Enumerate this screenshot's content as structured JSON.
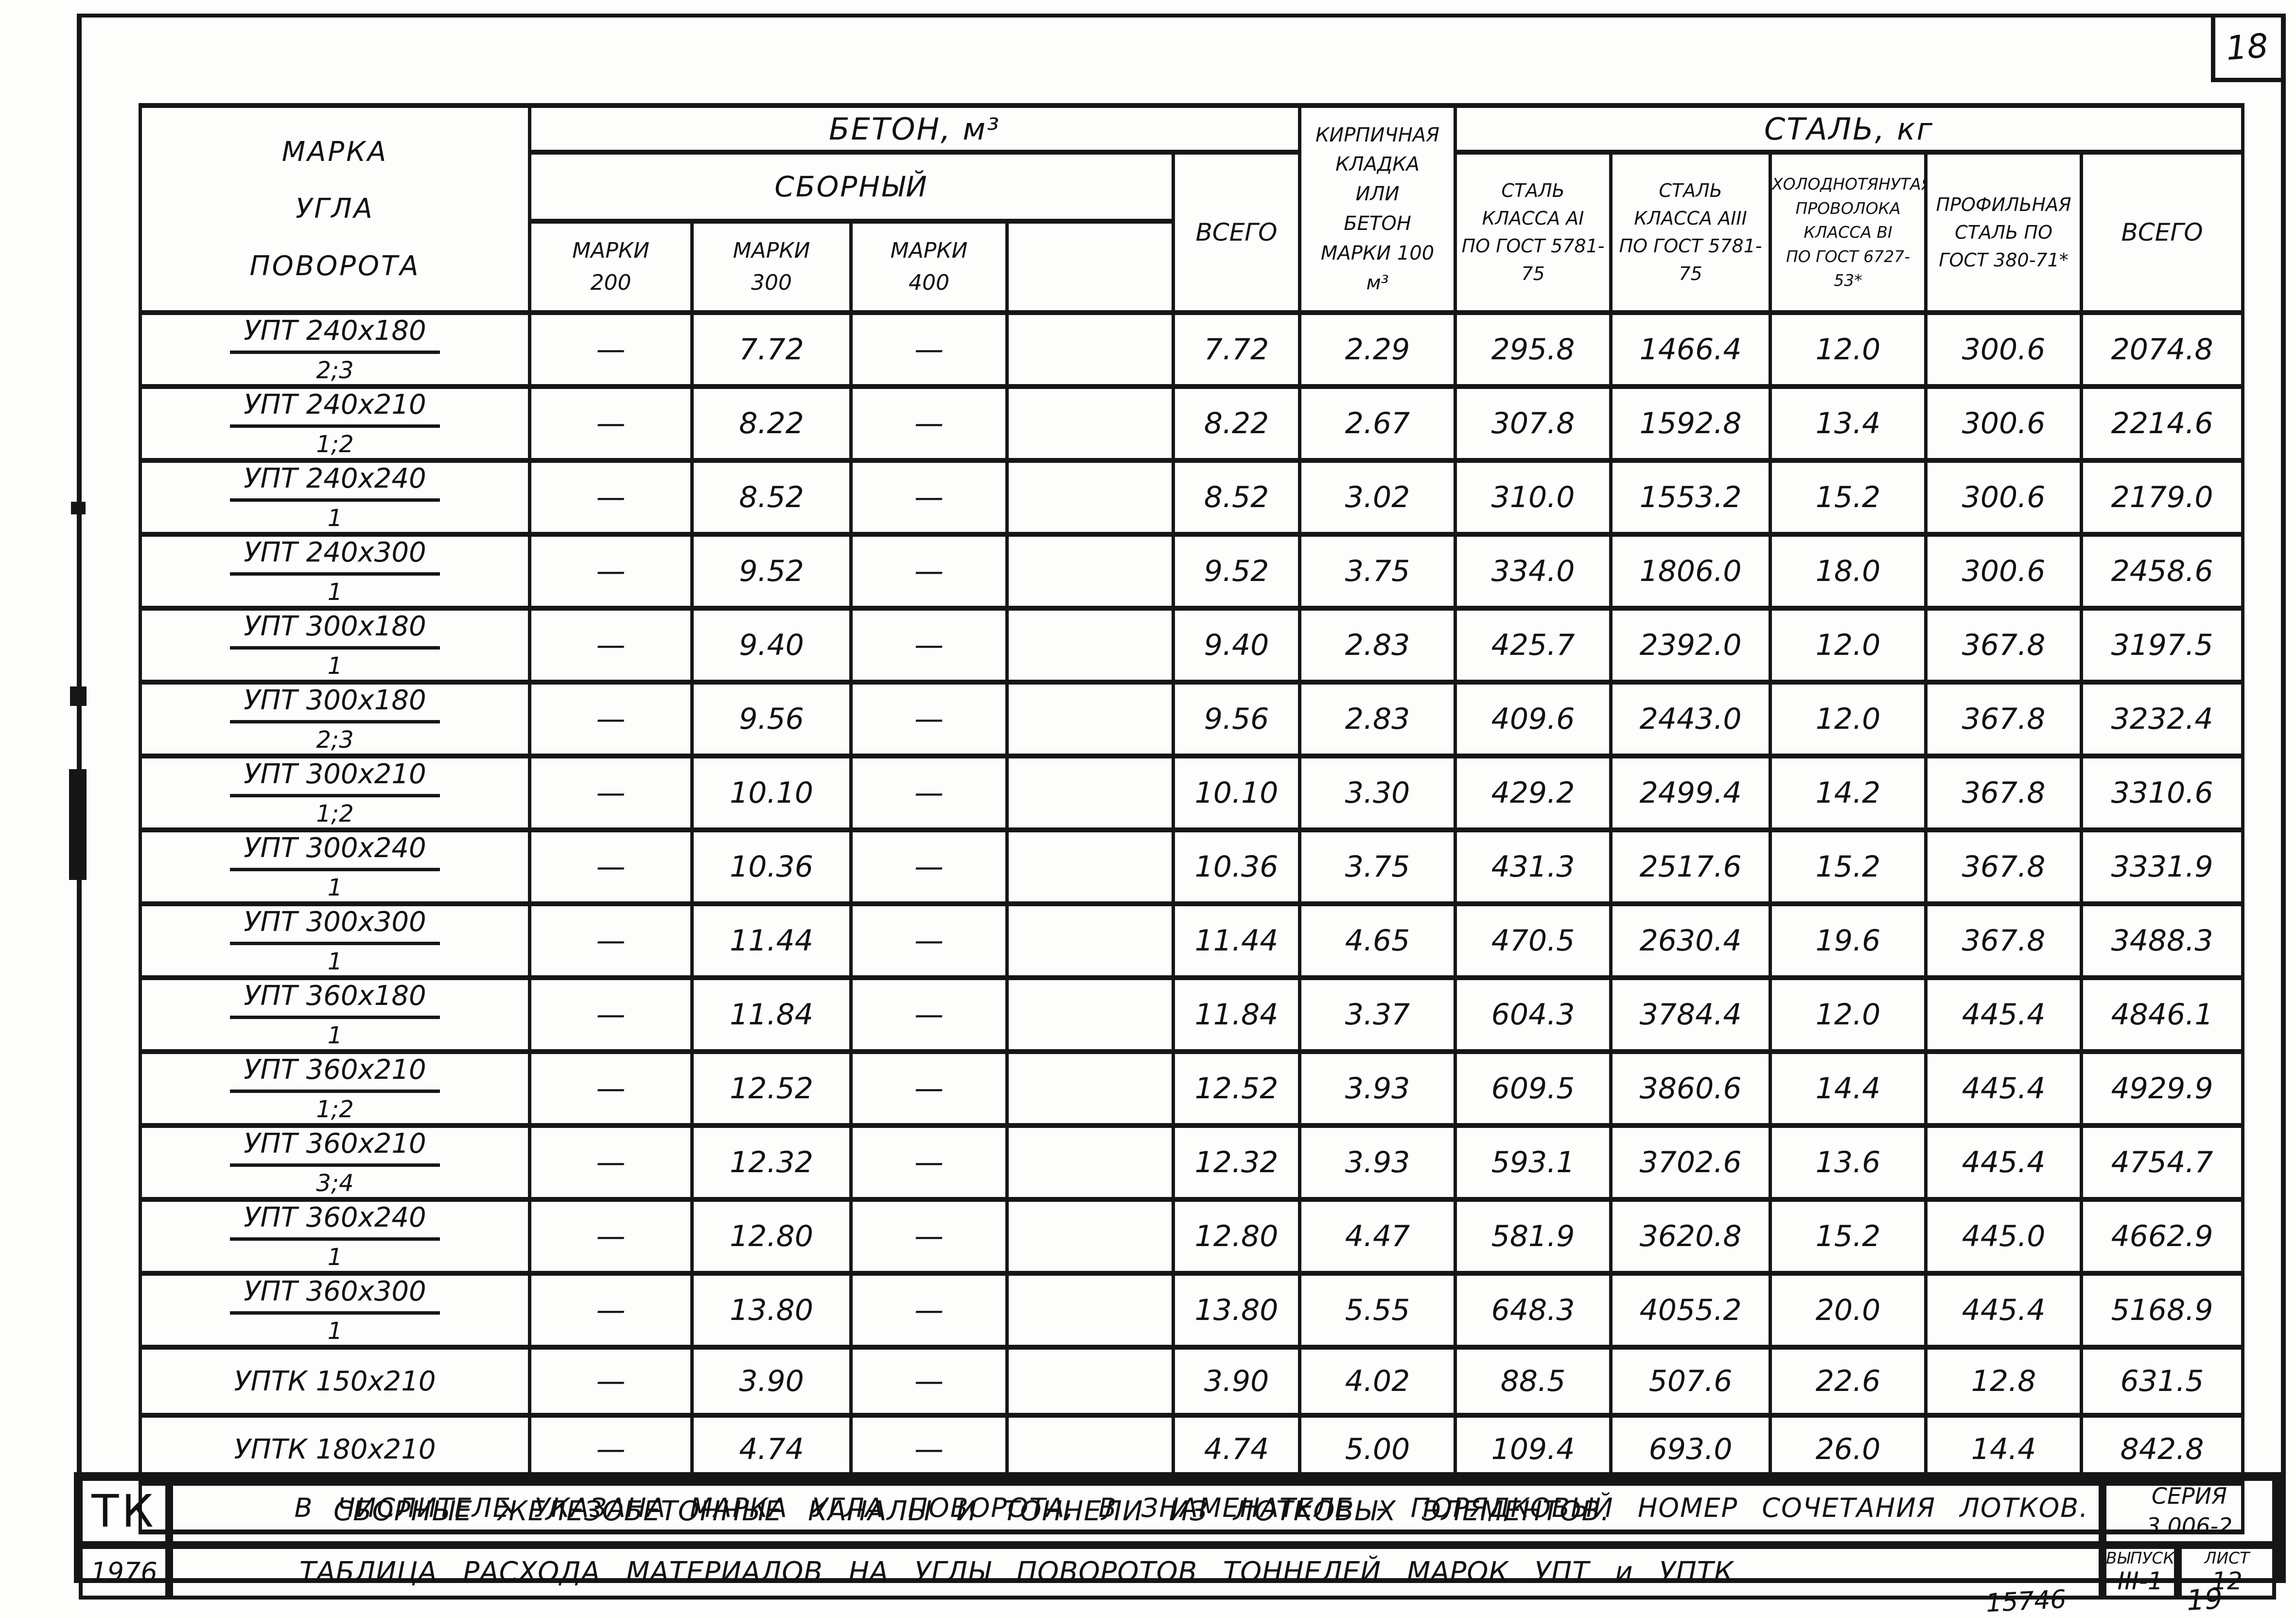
{
  "sheet": {
    "page_number_box": "18",
    "footer_doc_number": "15746",
    "footer_page_number": "19"
  },
  "table": {
    "headers": {
      "mark": "МАРКА\nУГЛА\nПОВОРОТА",
      "concrete_group": "БЕТОН, м³",
      "precast_group": "СБОРНЫЙ",
      "grade_200": "МАРКИ\n200",
      "grade_300": "МАРКИ\n300",
      "grade_400": "МАРКИ\n400",
      "grade_extra": "",
      "concrete_total": "ВСЕГО",
      "brick": "КИРПИЧНАЯ\nКЛАДКА\nИЛИ\nБЕТОН\nМАРКИ 100\nм³",
      "steel_group": "СТАЛЬ, кг",
      "steel_a1": "СТАЛЬ\nКЛАССА АI\nПО ГОСТ 5781-75",
      "steel_a3": "СТАЛЬ\nКЛАССА АIII\nПО ГОСТ 5781-75",
      "wire_b1": "ХОЛОДНОТЯНУТАЯ\nПРОВОЛОКА\nКЛАССА ВI\nПО ГОСТ 6727-53*",
      "profile_steel": "ПРОФИЛЬНАЯ\nСТАЛЬ ПО\nГОСТ 380-71*",
      "steel_total": "ВСЕГО"
    },
    "rows": [
      {
        "mark": "УПТ 240х180",
        "combo": "2;3",
        "g200": "—",
        "g300": "7.72",
        "g400": "—",
        "extra": "",
        "total": "7.72",
        "brick": "2.29",
        "a1": "295.8",
        "a3": "1466.4",
        "wire": "12.0",
        "profile": "300.6",
        "steel_total": "2074.8"
      },
      {
        "mark": "УПТ 240х210",
        "combo": "1;2",
        "g200": "—",
        "g300": "8.22",
        "g400": "—",
        "extra": "",
        "total": "8.22",
        "brick": "2.67",
        "a1": "307.8",
        "a3": "1592.8",
        "wire": "13.4",
        "profile": "300.6",
        "steel_total": "2214.6"
      },
      {
        "mark": "УПТ 240х240",
        "combo": "1",
        "g200": "—",
        "g300": "8.52",
        "g400": "—",
        "extra": "",
        "total": "8.52",
        "brick": "3.02",
        "a1": "310.0",
        "a3": "1553.2",
        "wire": "15.2",
        "profile": "300.6",
        "steel_total": "2179.0"
      },
      {
        "mark": "УПТ 240х300",
        "combo": "1",
        "g200": "—",
        "g300": "9.52",
        "g400": "—",
        "extra": "",
        "total": "9.52",
        "brick": "3.75",
        "a1": "334.0",
        "a3": "1806.0",
        "wire": "18.0",
        "profile": "300.6",
        "steel_total": "2458.6"
      },
      {
        "mark": "УПТ 300х180",
        "combo": "1",
        "g200": "—",
        "g300": "9.40",
        "g400": "—",
        "extra": "",
        "total": "9.40",
        "brick": "2.83",
        "a1": "425.7",
        "a3": "2392.0",
        "wire": "12.0",
        "profile": "367.8",
        "steel_total": "3197.5"
      },
      {
        "mark": "УПТ 300х180",
        "combo": "2;3",
        "g200": "—",
        "g300": "9.56",
        "g400": "—",
        "extra": "",
        "total": "9.56",
        "brick": "2.83",
        "a1": "409.6",
        "a3": "2443.0",
        "wire": "12.0",
        "profile": "367.8",
        "steel_total": "3232.4"
      },
      {
        "mark": "УПТ 300х210",
        "combo": "1;2",
        "g200": "—",
        "g300": "10.10",
        "g400": "—",
        "extra": "",
        "total": "10.10",
        "brick": "3.30",
        "a1": "429.2",
        "a3": "2499.4",
        "wire": "14.2",
        "profile": "367.8",
        "steel_total": "3310.6"
      },
      {
        "mark": "УПТ 300х240",
        "combo": "1",
        "g200": "—",
        "g300": "10.36",
        "g400": "—",
        "extra": "",
        "total": "10.36",
        "brick": "3.75",
        "a1": "431.3",
        "a3": "2517.6",
        "wire": "15.2",
        "profile": "367.8",
        "steel_total": "3331.9"
      },
      {
        "mark": "УПТ 300х300",
        "combo": "1",
        "g200": "—",
        "g300": "11.44",
        "g400": "—",
        "extra": "",
        "total": "11.44",
        "brick": "4.65",
        "a1": "470.5",
        "a3": "2630.4",
        "wire": "19.6",
        "profile": "367.8",
        "steel_total": "3488.3"
      },
      {
        "mark": "УПТ 360х180",
        "combo": "1",
        "g200": "—",
        "g300": "11.84",
        "g400": "—",
        "extra": "",
        "total": "11.84",
        "brick": "3.37",
        "a1": "604.3",
        "a3": "3784.4",
        "wire": "12.0",
        "profile": "445.4",
        "steel_total": "4846.1"
      },
      {
        "mark": "УПТ 360х210",
        "combo": "1;2",
        "g200": "—",
        "g300": "12.52",
        "g400": "—",
        "extra": "",
        "total": "12.52",
        "brick": "3.93",
        "a1": "609.5",
        "a3": "3860.6",
        "wire": "14.4",
        "profile": "445.4",
        "steel_total": "4929.9"
      },
      {
        "mark": "УПТ 360х210",
        "combo": "3;4",
        "g200": "—",
        "g300": "12.32",
        "g400": "—",
        "extra": "",
        "total": "12.32",
        "brick": "3.93",
        "a1": "593.1",
        "a3": "3702.6",
        "wire": "13.6",
        "profile": "445.4",
        "steel_total": "4754.7"
      },
      {
        "mark": "УПТ 360х240",
        "combo": "1",
        "g200": "—",
        "g300": "12.80",
        "g400": "—",
        "extra": "",
        "total": "12.80",
        "brick": "4.47",
        "a1": "581.9",
        "a3": "3620.8",
        "wire": "15.2",
        "profile": "445.0",
        "steel_total": "4662.9"
      },
      {
        "mark": "УПТ 360х300",
        "combo": "1",
        "g200": "—",
        "g300": "13.80",
        "g400": "—",
        "extra": "",
        "total": "13.80",
        "brick": "5.55",
        "a1": "648.3",
        "a3": "4055.2",
        "wire": "20.0",
        "profile": "445.4",
        "steel_total": "5168.9"
      },
      {
        "mark": "УПТК 150х210",
        "combo": "",
        "g200": "—",
        "g300": "3.90",
        "g400": "—",
        "extra": "",
        "total": "3.90",
        "brick": "4.02",
        "a1": "88.5",
        "a3": "507.6",
        "wire": "22.6",
        "profile": "12.8",
        "steel_total": "631.5"
      },
      {
        "mark": "УПТК 180х210",
        "combo": "",
        "g200": "—",
        "g300": "4.74",
        "g400": "—",
        "extra": "",
        "total": "4.74",
        "brick": "5.00",
        "a1": "109.4",
        "a3": "693.0",
        "wire": "26.0",
        "profile": "14.4",
        "steel_total": "842.8"
      }
    ],
    "footnote": "В ЧИСЛИТЕЛЕ УКАЗАНА МАРКА УГЛА ПОВОРОТА, В ЗНАМЕНАТЕЛЕ - ПОРЯДКОВЫЙ НОМЕР СОЧЕТАНИЯ ЛОТКОВ."
  },
  "title_block": {
    "org": "ТК",
    "year": "1976",
    "title_line1": "СБОРНЫЕ ЖЕЛЕЗОБЕТОННЫЕ КАНАЛЫ И ТОННЕЛИ ИЗ ЛОТКОВЫХ ЭЛЕМЕНТОВ.",
    "title_line2": "ТАБЛИЦА РАСХОДА МАТЕРИАЛОВ НА УГЛЫ ПОВОРОТОВ ТОННЕЛЕЙ МАРОК УПТ и УПТК",
    "series_label": "СЕРИЯ",
    "series_value": "3.006-2",
    "issue_label": "ВЫПУСК",
    "issue_value": "III-1",
    "sheet_label": "ЛИСТ",
    "sheet_value": "12"
  }
}
